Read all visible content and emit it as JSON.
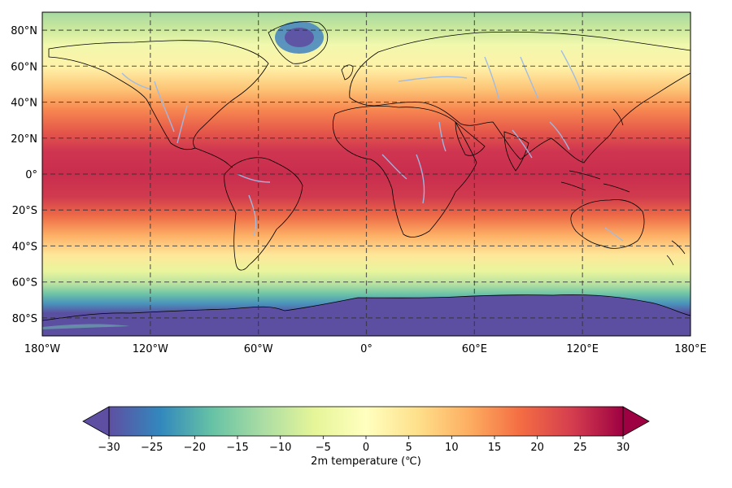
{
  "map": {
    "lon_ticks": [
      "180°W",
      "120°W",
      "60°W",
      "0°",
      "60°E",
      "120°E",
      "180°E"
    ],
    "lat_ticks": [
      "80°N",
      "60°N",
      "40°N",
      "20°N",
      "0°",
      "20°S",
      "40°S",
      "60°S",
      "80°S"
    ],
    "lon_values": [
      -180,
      -120,
      -60,
      0,
      60,
      120,
      180
    ],
    "lat_values": [
      80,
      60,
      40,
      20,
      0,
      -20,
      -40,
      -60,
      -80
    ],
    "lon_range": [
      -180,
      180
    ],
    "lat_range": [
      -90,
      90
    ],
    "gridlines": true,
    "projection": "PlateCarree"
  },
  "colorbar": {
    "label": "2m temperature (℃)",
    "range": [
      -30,
      30
    ],
    "ticks": [
      -30,
      -25,
      -20,
      -15,
      -10,
      -5,
      0,
      5,
      10,
      15,
      20,
      25,
      30
    ],
    "tick_labels": [
      "−30",
      "−25",
      "−20",
      "−15",
      "−10",
      "−5",
      "0",
      "5",
      "10",
      "15",
      "20",
      "25",
      "30"
    ],
    "colormap": "Spectral_r",
    "extend": "both",
    "cmap_colors": [
      "#5e4fa2",
      "#3288bd",
      "#66c2a5",
      "#abdda4",
      "#e6f598",
      "#ffffbf",
      "#fee08b",
      "#fdae61",
      "#f46d43",
      "#d53e4f",
      "#9e0142"
    ]
  },
  "colors": {
    "land_outline": "#000000",
    "rivers": "#9dbbe6",
    "grid": "#333333"
  }
}
